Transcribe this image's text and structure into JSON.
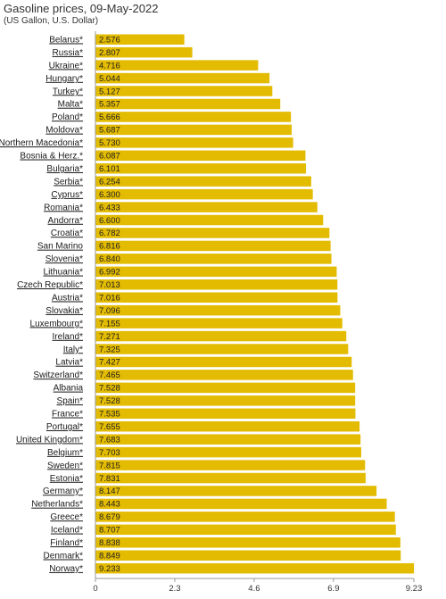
{
  "title": "Gasoline prices, 09-May-2022",
  "subtitle": "(US Gallon, U.S. Dollar)",
  "colors": {
    "bar": "#e3bb00",
    "axis": "#999999",
    "grid": "#e0e0e0"
  },
  "chart_data": {
    "type": "bar",
    "orientation": "horizontal",
    "categories": [
      "Belarus*",
      "Russia*",
      "Ukraine*",
      "Hungary*",
      "Turkey*",
      "Malta*",
      "Poland*",
      "Moldova*",
      "Northern Macedonia*",
      "Bosnia & Herz.*",
      "Bulgaria*",
      "Serbia*",
      "Cyprus*",
      "Romania*",
      "Andorra*",
      "Croatia*",
      "San Marino",
      "Slovenia*",
      "Lithuania*",
      "Czech Republic*",
      "Austria*",
      "Slovakia*",
      "Luxembourg*",
      "Ireland*",
      "Italy*",
      "Latvia*",
      "Switzerland*",
      "Albania",
      "Spain*",
      "France*",
      "Portugal*",
      "United Kingdom*",
      "Belgium*",
      "Sweden*",
      "Estonia*",
      "Germany*",
      "Netherlands*",
      "Greece*",
      "Iceland*",
      "Finland*",
      "Denmark*",
      "Norway*"
    ],
    "values": [
      2.576,
      2.807,
      4.716,
      5.044,
      5.127,
      5.357,
      5.666,
      5.687,
      5.73,
      6.087,
      6.101,
      6.254,
      6.3,
      6.433,
      6.6,
      6.782,
      6.816,
      6.84,
      6.992,
      7.013,
      7.016,
      7.096,
      7.155,
      7.271,
      7.325,
      7.427,
      7.465,
      7.528,
      7.528,
      7.535,
      7.655,
      7.683,
      7.703,
      7.815,
      7.831,
      8.147,
      8.443,
      8.679,
      8.707,
      8.838,
      8.849,
      9.233
    ],
    "labels": [
      "2.576",
      "2.807",
      "4.716",
      "5.044",
      "5.127",
      "5.357",
      "5.666",
      "5.687",
      "5.730",
      "6.087",
      "6.101",
      "6.254",
      "6.300",
      "6.433",
      "6.600",
      "6.782",
      "6.816",
      "6.840",
      "6.992",
      "7.013",
      "7.016",
      "7.096",
      "7.155",
      "7.271",
      "7.325",
      "7.427",
      "7.465",
      "7.528",
      "7.528",
      "7.535",
      "7.655",
      "7.683",
      "7.703",
      "7.815",
      "7.831",
      "8.147",
      "8.443",
      "8.679",
      "8.707",
      "8.838",
      "8.849",
      "9.233"
    ],
    "xlim": [
      0,
      9.23
    ],
    "xticks": [
      "0",
      "2.3",
      "4.6",
      "6.9",
      "9.23"
    ],
    "xtick_values": [
      0,
      2.3,
      4.6,
      6.9,
      9.23
    ],
    "grid": false,
    "legend": "none"
  }
}
